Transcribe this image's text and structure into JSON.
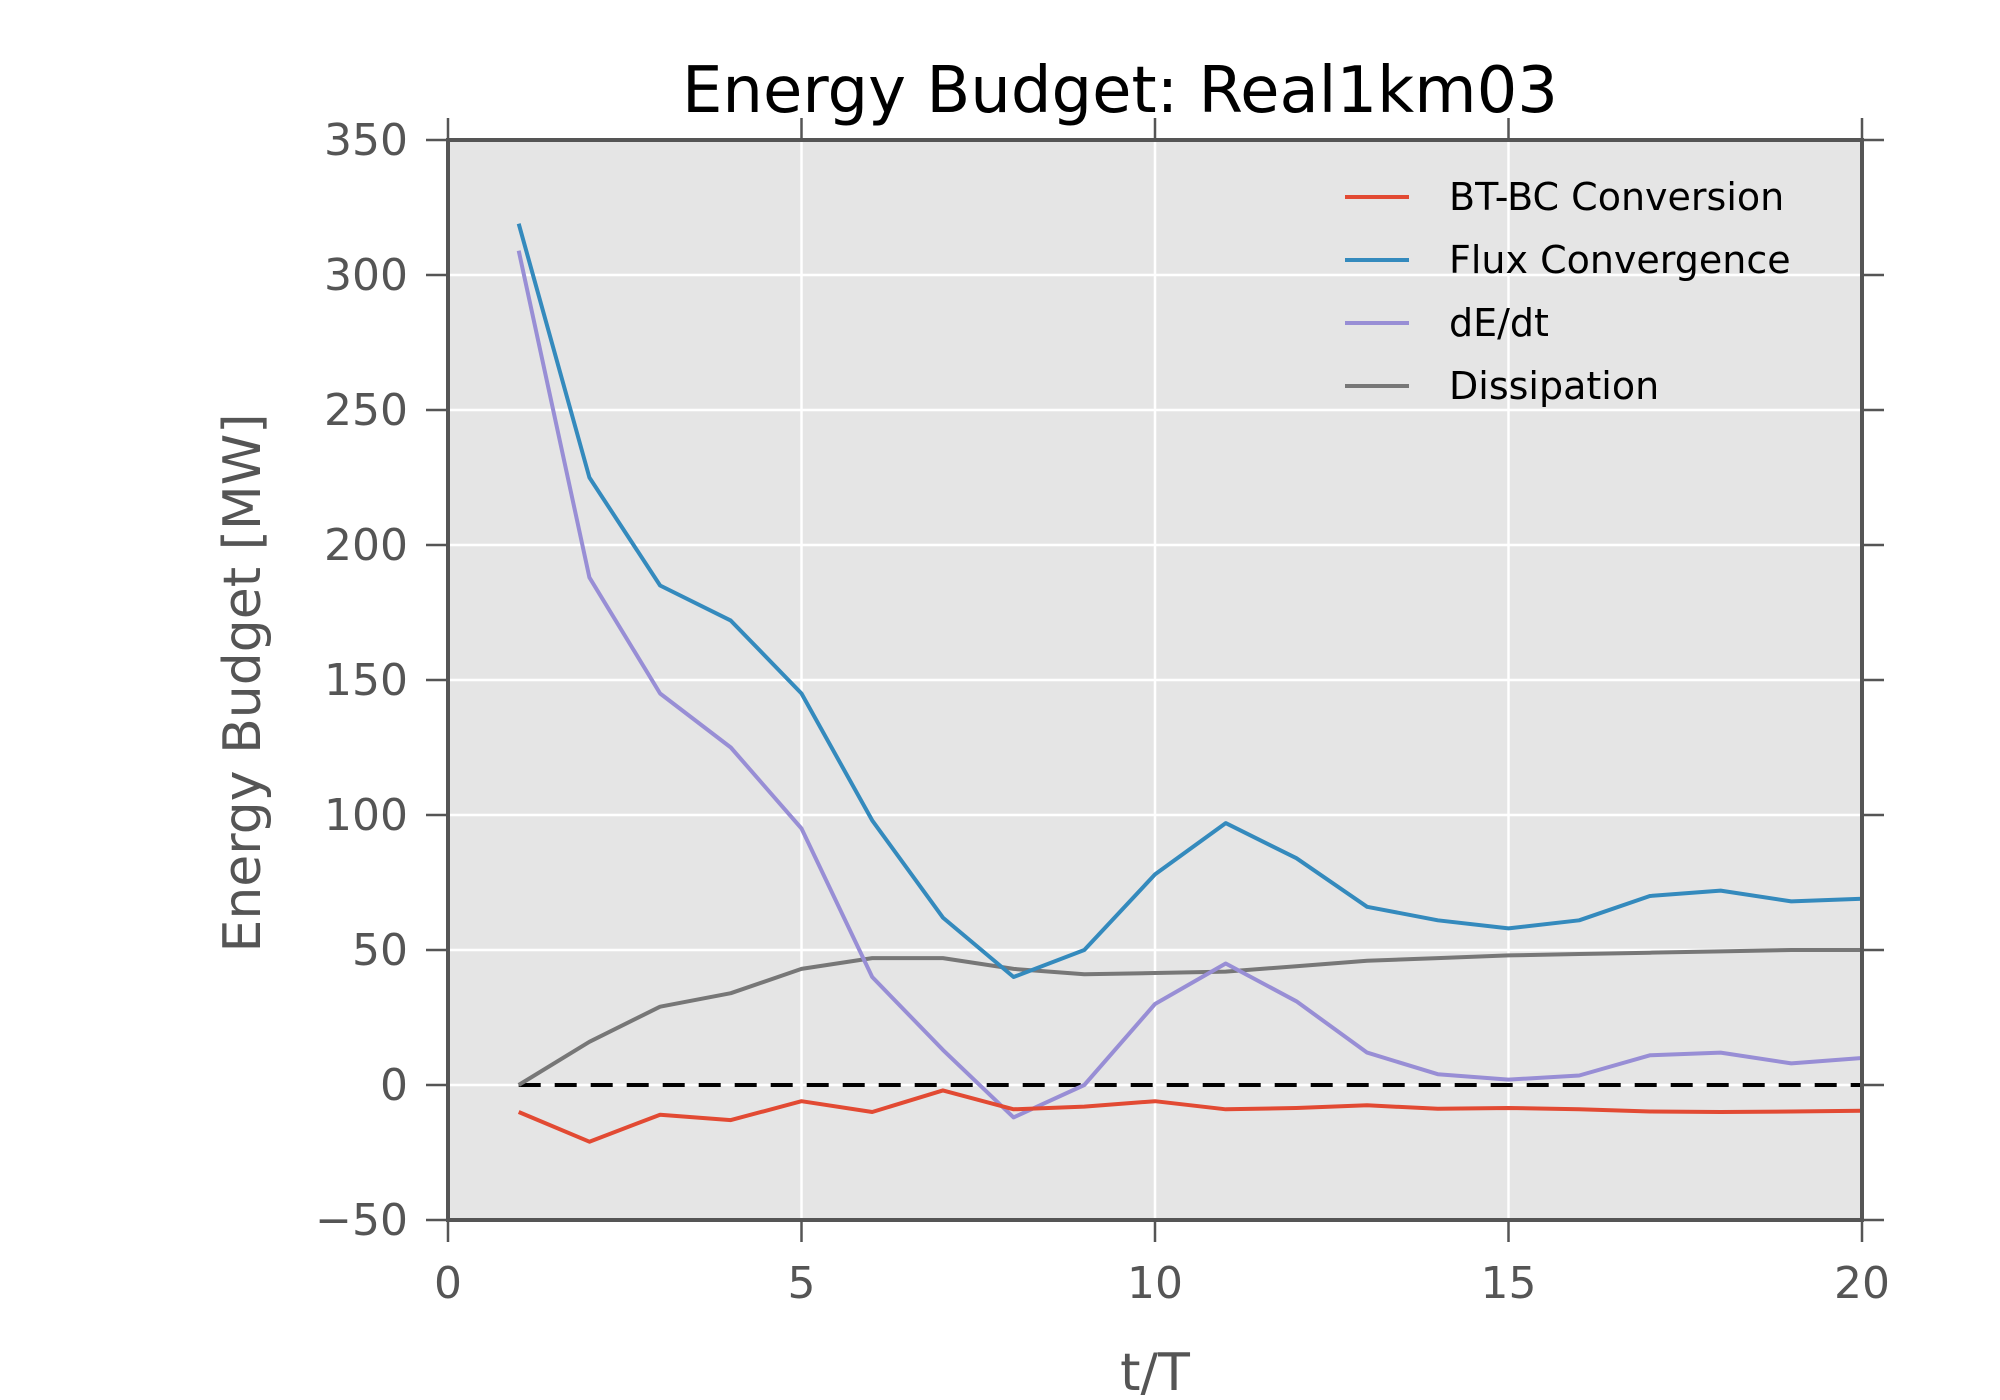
{
  "chart_data": {
    "type": "line",
    "title": "Energy Budget: Real1km03",
    "xlabel": "t/T",
    "ylabel": "Energy Budget [MW]",
    "xlim": [
      0,
      20
    ],
    "ylim": [
      -50,
      350
    ],
    "xticks": [
      0,
      5,
      10,
      15,
      20
    ],
    "yticks": [
      -50,
      0,
      50,
      100,
      150,
      200,
      250,
      300,
      350
    ],
    "xtick_labels": [
      "0",
      "5",
      "10",
      "15",
      "20"
    ],
    "ytick_labels": [
      "−50",
      "0",
      "50",
      "100",
      "150",
      "200",
      "250",
      "300",
      "350"
    ],
    "grid": true,
    "legend_position": "top-right",
    "background": "#e5e5e5",
    "zero_line": {
      "y": 0,
      "style": "dashed",
      "color": "#000000"
    },
    "x": [
      1,
      2,
      3,
      4,
      5,
      6,
      7,
      8,
      9,
      10,
      11,
      12,
      13,
      14,
      15,
      16,
      17,
      18,
      19,
      20
    ],
    "series": [
      {
        "name": "BT-BC Conversion",
        "color": "#e24a33",
        "values": [
          -10,
          -21,
          -11,
          -13,
          -6,
          -10,
          -2,
          -9,
          -8,
          -6,
          -9,
          -8.5,
          -7.5,
          -8.8,
          -8.5,
          -9,
          -9.8,
          -10,
          -9.8,
          -9.5
        ]
      },
      {
        "name": "Flux Convergence",
        "color": "#348abd",
        "values": [
          319,
          225,
          185,
          172,
          145,
          98,
          62,
          40,
          50,
          78,
          97,
          84,
          66,
          61,
          58,
          61,
          70,
          72,
          68,
          69
        ]
      },
      {
        "name": "dE/dt",
        "color": "#988ed5",
        "values": [
          309,
          188,
          145,
          125,
          95,
          40,
          13,
          -12,
          0,
          30,
          45,
          31,
          12,
          4,
          2,
          3.5,
          11,
          12,
          8,
          10
        ]
      },
      {
        "name": "Dissipation",
        "color": "#777777",
        "values": [
          0,
          16,
          29,
          34,
          43,
          47,
          47,
          43,
          41,
          41.5,
          42,
          44,
          46,
          47,
          48,
          48.5,
          49,
          49.5,
          50,
          50
        ]
      }
    ]
  }
}
